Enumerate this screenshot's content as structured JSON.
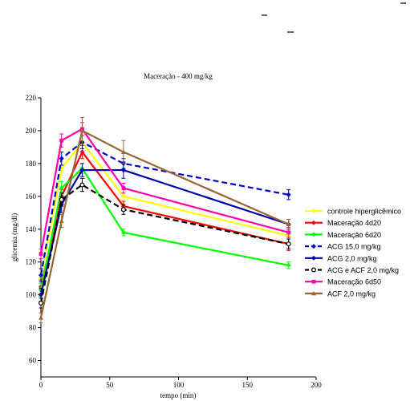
{
  "chart_data": {
    "type": "line",
    "title": "Maceração - 400 mg/kg",
    "xlabel": "tempo (min)",
    "ylabel": "glicemia (mg/dl)",
    "xlim": [
      0,
      200
    ],
    "ylim": [
      50,
      220
    ],
    "x_ticks": [
      "0",
      "50",
      "100",
      "150",
      "200"
    ],
    "y_ticks": [
      "60",
      "80",
      "100",
      "120",
      "140",
      "160",
      "180",
      "200",
      "220"
    ],
    "x_tick_values": [
      0,
      50,
      100,
      150,
      200
    ],
    "y_tick_values": [
      60,
      80,
      100,
      120,
      140,
      160,
      180,
      200,
      220
    ],
    "grid": false,
    "legend_position": "right",
    "x": [
      0,
      15,
      30,
      60,
      180
    ],
    "series": [
      {
        "name": "controle hiperglicêmico",
        "values": [
          110,
          177,
          193,
          160,
          136
        ],
        "errors": [
          4,
          4,
          4,
          4,
          4
        ],
        "color": "#ffff00",
        "dash": "solid",
        "marker": "diamond"
      },
      {
        "name": "Maceração 4d20",
        "values": [
          105,
          160,
          187,
          154,
          131
        ],
        "errors": [
          4,
          4,
          4,
          3,
          4
        ],
        "color": "#ff0000",
        "dash": "solid",
        "marker": "diamond"
      },
      {
        "name": "Maceração 6d20",
        "values": [
          103,
          165,
          177,
          138,
          118
        ],
        "errors": [
          4,
          4,
          3,
          2,
          2
        ],
        "color": "#00ff00",
        "dash": "solid",
        "marker": "diamond"
      },
      {
        "name": "ACG 15,0 mg/kg",
        "values": [
          112,
          183,
          193,
          180,
          161
        ],
        "errors": [
          4,
          4,
          4,
          3,
          3
        ],
        "color": "#0000cc",
        "dash": "dashed",
        "marker": "diamond"
      },
      {
        "name": "ACG 2,0 mg/kg",
        "values": [
          100,
          155,
          176,
          176,
          143
        ],
        "errors": [
          4,
          5,
          4,
          5,
          3
        ],
        "color": "#0000aa",
        "dash": "solid",
        "marker": "diamond"
      },
      {
        "name": "ACG e ACF 2,0 mg/kg",
        "values": [
          95,
          158,
          167,
          152,
          131
        ],
        "errors": [
          3,
          4,
          4,
          3,
          3
        ],
        "color": "#000000",
        "dash": "dashed",
        "marker": "circle-open"
      },
      {
        "name": "Maceração 6d50",
        "values": [
          125,
          194,
          201,
          165,
          138
        ],
        "errors": [
          3,
          4,
          4,
          3,
          3
        ],
        "color": "#ff00aa",
        "dash": "solid",
        "marker": "square"
      },
      {
        "name": "ACF 2,0 mg/kg",
        "values": [
          86,
          145,
          200,
          187,
          143
        ],
        "errors": [
          3,
          4,
          8,
          7,
          3
        ],
        "color": "#996633",
        "dash": "solid",
        "marker": "triangle"
      }
    ]
  }
}
